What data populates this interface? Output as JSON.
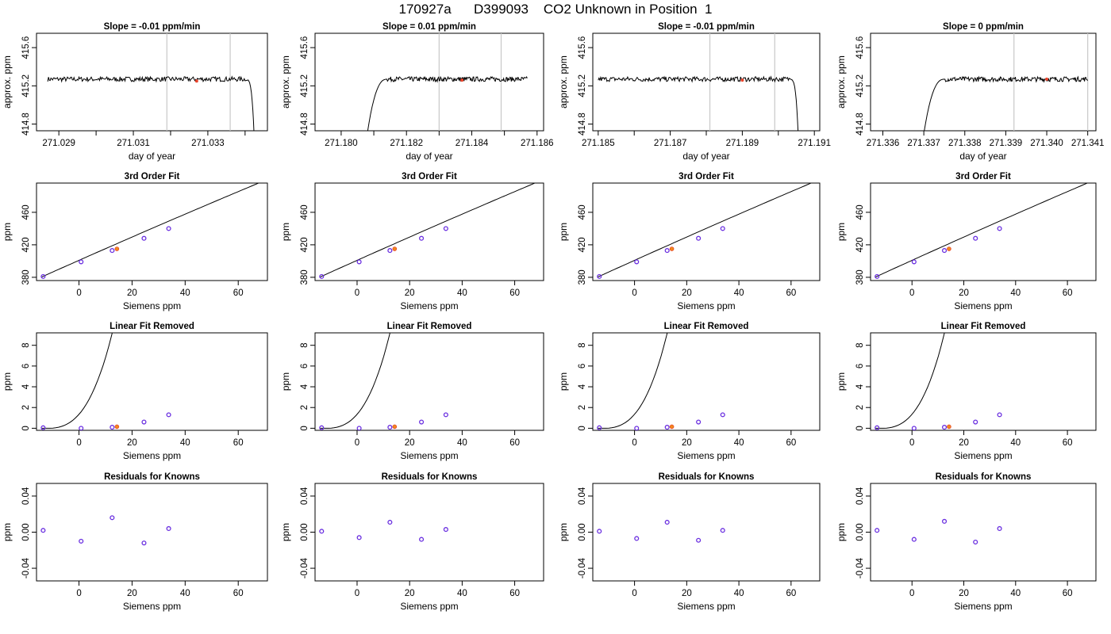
{
  "figure": {
    "title": "170927a      D399093    CO2 Unknown in Position  1"
  },
  "chart_data": [
    {
      "panel": "r1c1",
      "type": "line",
      "title": "Slope =  -0.01  ppm/min",
      "xlabel": "day of year",
      "ylabel": "approx. ppm",
      "xlim": [
        271.0284,
        271.0346
      ],
      "ylim": [
        414.73,
        415.75
      ],
      "xticks": [
        271.029,
        271.03,
        271.031,
        271.032,
        271.033,
        271.034
      ],
      "xticklabels": [
        "271.029",
        "",
        "271.031",
        "",
        "271.033",
        ""
      ],
      "yticks": [
        414.8,
        415.2,
        415.6
      ],
      "yticklabels": [
        "414.8",
        "415.2",
        "415.6"
      ],
      "vlines": [
        271.0319,
        271.0336
      ],
      "trace": {
        "x_start": 271.0287,
        "x_plateau_end": 271.034,
        "x_drop_end": 271.03424,
        "level": 415.27,
        "drop_to": 414.7,
        "rise": false
      },
      "marker": {
        "x": 271.0327,
        "y": 415.25
      }
    },
    {
      "panel": "r2c1",
      "type": "line",
      "title": "Slope =  0.01  ppm/min",
      "xlabel": "day of year",
      "ylabel": "approx. ppm",
      "xlim": [
        271.1792,
        271.1862
      ],
      "ylim": [
        414.73,
        415.75
      ],
      "xticks": [
        271.18,
        271.181,
        271.182,
        271.183,
        271.184,
        271.185,
        271.186
      ],
      "xticklabels": [
        "271.180",
        "",
        "271.182",
        "",
        "271.184",
        "",
        "271.186"
      ],
      "yticks": [
        414.8,
        415.2,
        415.6
      ],
      "yticklabels": [
        "414.8",
        "415.2",
        "415.6"
      ],
      "vlines": [
        271.183,
        271.1849
      ],
      "trace": {
        "x_start": 271.1808,
        "x_rise_end": 271.1814,
        "x_end": 271.1857,
        "level": 415.27,
        "rise": true
      },
      "marker": {
        "x": 271.1837,
        "y": 415.26
      }
    },
    {
      "panel": "r3c1",
      "type": "line",
      "title": "Slope =  -0.01  ppm/min",
      "xlabel": "day of year",
      "ylabel": "approx. ppm",
      "xlim": [
        271.18485,
        271.19115
      ],
      "ylim": [
        414.73,
        415.75
      ],
      "xticks": [
        271.185,
        271.186,
        271.187,
        271.188,
        271.189,
        271.19,
        271.191
      ],
      "xticklabels": [
        "271.185",
        "",
        "271.187",
        "",
        "271.189",
        "",
        "271.191"
      ],
      "yticks": [
        414.8,
        415.2,
        415.6
      ],
      "yticklabels": [
        "414.8",
        "415.2",
        "415.6"
      ],
      "vlines": [
        271.1881,
        271.1899
      ],
      "trace": {
        "x_start": 271.185,
        "x_plateau_end": 271.1903,
        "x_drop_end": 271.19055,
        "level": 415.27,
        "drop_to": 414.7,
        "rise": false
      },
      "marker": {
        "x": 271.189,
        "y": 415.26
      }
    },
    {
      "panel": "r4c1",
      "type": "line",
      "title": "Slope =  0  ppm/min",
      "xlabel": "day of year",
      "ylabel": "approx. ppm",
      "xlim": [
        271.3357,
        271.3412
      ],
      "ylim": [
        414.73,
        415.75
      ],
      "xticks": [
        271.336,
        271.337,
        271.338,
        271.339,
        271.34,
        271.341
      ],
      "xticklabels": [
        "271.336",
        "271.337",
        "271.338",
        "271.339",
        "271.340",
        "271.341"
      ],
      "yticks": [
        414.8,
        415.2,
        415.6
      ],
      "yticklabels": [
        "414.8",
        "415.2",
        "415.6"
      ],
      "vlines": [
        271.3392,
        271.341
      ],
      "trace": {
        "x_start": 271.337,
        "x_rise_end": 271.3375,
        "x_end": 271.341,
        "level": 415.27,
        "rise": true
      },
      "marker": {
        "x": 271.34,
        "y": 415.27
      }
    },
    {
      "panel": "r1c2",
      "type": "scatter+line",
      "title": "3rd Order Fit",
      "xlabel": "Siemens ppm",
      "ylabel": "ppm",
      "xlim": [
        -16,
        71
      ],
      "ylim": [
        376,
        496
      ],
      "xticks": [
        0,
        20,
        40,
        60
      ],
      "yticks": [
        380,
        420,
        460
      ],
      "curve": {
        "x0": -14,
        "y0": 380.5,
        "slope": 1.463,
        "x1": 69
      },
      "knowns": [
        {
          "x": -13.5,
          "y": 381
        },
        {
          "x": 0.8,
          "y": 399
        },
        {
          "x": 12.5,
          "y": 413
        },
        {
          "x": 24.5,
          "y": 428
        },
        {
          "x": 33.8,
          "y": 440
        }
      ],
      "unknown": {
        "x": 14.3,
        "y": 415
      }
    },
    {
      "panel": "r2c2",
      "type": "scatter+line",
      "title": "3rd Order Fit",
      "xlabel": "Siemens ppm",
      "ylabel": "ppm",
      "xlim": [
        -16,
        71
      ],
      "ylim": [
        376,
        496
      ],
      "xticks": [
        0,
        20,
        40,
        60
      ],
      "yticks": [
        380,
        420,
        460
      ],
      "curve": {
        "x0": -14,
        "y0": 380.5,
        "slope": 1.463,
        "x1": 69
      },
      "knowns": [
        {
          "x": -13.5,
          "y": 381
        },
        {
          "x": 0.8,
          "y": 399
        },
        {
          "x": 12.5,
          "y": 413
        },
        {
          "x": 24.5,
          "y": 428
        },
        {
          "x": 33.8,
          "y": 440
        }
      ],
      "unknown": {
        "x": 14.3,
        "y": 415
      }
    },
    {
      "panel": "r3c2",
      "type": "scatter+line",
      "title": "3rd Order Fit",
      "xlabel": "Siemens ppm",
      "ylabel": "ppm",
      "xlim": [
        -16,
        71
      ],
      "ylim": [
        376,
        496
      ],
      "xticks": [
        0,
        20,
        40,
        60
      ],
      "yticks": [
        380,
        420,
        460
      ],
      "curve": {
        "x0": -14,
        "y0": 380.5,
        "slope": 1.463,
        "x1": 69
      },
      "knowns": [
        {
          "x": -13.5,
          "y": 381
        },
        {
          "x": 0.8,
          "y": 399
        },
        {
          "x": 12.5,
          "y": 413
        },
        {
          "x": 24.5,
          "y": 428
        },
        {
          "x": 33.8,
          "y": 440
        }
      ],
      "unknown": {
        "x": 14.3,
        "y": 415
      }
    },
    {
      "panel": "r4c2",
      "type": "scatter+line",
      "title": "3rd Order Fit",
      "xlabel": "Siemens ppm",
      "ylabel": "ppm",
      "xlim": [
        -16,
        71
      ],
      "ylim": [
        376,
        496
      ],
      "xticks": [
        0,
        20,
        40,
        60
      ],
      "yticks": [
        380,
        420,
        460
      ],
      "curve": {
        "x0": -14,
        "y0": 380.5,
        "slope": 1.463,
        "x1": 69
      },
      "knowns": [
        {
          "x": -13.5,
          "y": 381
        },
        {
          "x": 0.8,
          "y": 399
        },
        {
          "x": 12.5,
          "y": 413
        },
        {
          "x": 24.5,
          "y": 428
        },
        {
          "x": 33.8,
          "y": 440
        }
      ],
      "unknown": {
        "x": 14.3,
        "y": 415
      }
    },
    {
      "panel": "r1c3",
      "type": "scatter+line",
      "title": "Linear Fit Removed",
      "xlabel": "Siemens ppm",
      "ylabel": "ppm",
      "xlim": [
        -16,
        71
      ],
      "ylim": [
        -0.2,
        9.2
      ],
      "xticks": [
        0,
        20,
        40,
        60
      ],
      "yticks": [
        0,
        2,
        4,
        6,
        8
      ],
      "curve": {
        "x0": -14,
        "a": 0.000565,
        "p": 2.96,
        "x1": 70
      },
      "knowns": [
        {
          "x": -13.5,
          "y": 0.05
        },
        {
          "x": 0.8,
          "y": 0.0
        },
        {
          "x": 12.5,
          "y": 0.1
        },
        {
          "x": 24.5,
          "y": 0.6
        },
        {
          "x": 33.8,
          "y": 1.3
        }
      ],
      "unknown": {
        "x": 14.3,
        "y": 0.15
      }
    },
    {
      "panel": "r2c3",
      "type": "scatter+line",
      "title": "Linear Fit Removed",
      "xlabel": "Siemens ppm",
      "ylabel": "ppm",
      "xlim": [
        -16,
        71
      ],
      "ylim": [
        -0.2,
        9.2
      ],
      "xticks": [
        0,
        20,
        40,
        60
      ],
      "yticks": [
        0,
        2,
        4,
        6,
        8
      ],
      "curve": {
        "x0": -14,
        "a": 0.000565,
        "p": 2.96,
        "x1": 70
      },
      "knowns": [
        {
          "x": -13.5,
          "y": 0.05
        },
        {
          "x": 0.8,
          "y": 0.0
        },
        {
          "x": 12.5,
          "y": 0.1
        },
        {
          "x": 24.5,
          "y": 0.6
        },
        {
          "x": 33.8,
          "y": 1.3
        }
      ],
      "unknown": {
        "x": 14.3,
        "y": 0.15
      }
    },
    {
      "panel": "r3c3",
      "type": "scatter+line",
      "title": "Linear Fit Removed",
      "xlabel": "Siemens ppm",
      "ylabel": "ppm",
      "xlim": [
        -16,
        71
      ],
      "ylim": [
        -0.2,
        9.2
      ],
      "xticks": [
        0,
        20,
        40,
        60
      ],
      "yticks": [
        0,
        2,
        4,
        6,
        8
      ],
      "curve": {
        "x0": -14,
        "a": 0.000565,
        "p": 2.96,
        "x1": 70
      },
      "knowns": [
        {
          "x": -13.5,
          "y": 0.05
        },
        {
          "x": 0.8,
          "y": 0.0
        },
        {
          "x": 12.5,
          "y": 0.1
        },
        {
          "x": 24.5,
          "y": 0.6
        },
        {
          "x": 33.8,
          "y": 1.3
        }
      ],
      "unknown": {
        "x": 14.3,
        "y": 0.15
      }
    },
    {
      "panel": "r4c3",
      "type": "scatter+line",
      "title": "Linear Fit Removed",
      "xlabel": "Siemens ppm",
      "ylabel": "ppm",
      "xlim": [
        -16,
        71
      ],
      "ylim": [
        -0.2,
        9.2
      ],
      "xticks": [
        0,
        20,
        40,
        60
      ],
      "yticks": [
        0,
        2,
        4,
        6,
        8
      ],
      "curve": {
        "x0": -14,
        "a": 0.000565,
        "p": 2.96,
        "x1": 70
      },
      "knowns": [
        {
          "x": -13.5,
          "y": 0.05
        },
        {
          "x": 0.8,
          "y": 0.0
        },
        {
          "x": 12.5,
          "y": 0.1
        },
        {
          "x": 24.5,
          "y": 0.6
        },
        {
          "x": 33.8,
          "y": 1.3
        }
      ],
      "unknown": {
        "x": 14.3,
        "y": 0.15
      }
    },
    {
      "panel": "r1c4",
      "type": "scatter",
      "title": "Residuals for Knowns",
      "xlabel": "Siemens ppm",
      "ylabel": "ppm",
      "xlim": [
        -16,
        71
      ],
      "ylim": [
        -0.054,
        0.054
      ],
      "xticks": [
        0,
        20,
        40,
        60
      ],
      "yticks": [
        -0.04,
        0.0,
        0.04
      ],
      "yticklabels": [
        "-0.04",
        "0.00",
        "0.04"
      ],
      "knowns": [
        {
          "x": -13.5,
          "y": 0.002
        },
        {
          "x": 0.8,
          "y": -0.01
        },
        {
          "x": 12.5,
          "y": 0.016
        },
        {
          "x": 24.5,
          "y": -0.012
        },
        {
          "x": 33.8,
          "y": 0.004
        }
      ]
    },
    {
      "panel": "r2c4",
      "type": "scatter",
      "title": "Residuals for Knowns",
      "xlabel": "Siemens ppm",
      "ylabel": "ppm",
      "xlim": [
        -16,
        71
      ],
      "ylim": [
        -0.054,
        0.054
      ],
      "xticks": [
        0,
        20,
        40,
        60
      ],
      "yticks": [
        -0.04,
        0.0,
        0.04
      ],
      "yticklabels": [
        "-0.04",
        "0.00",
        "0.04"
      ],
      "knowns": [
        {
          "x": -13.5,
          "y": 0.001
        },
        {
          "x": 0.8,
          "y": -0.006
        },
        {
          "x": 12.5,
          "y": 0.011
        },
        {
          "x": 24.5,
          "y": -0.008
        },
        {
          "x": 33.8,
          "y": 0.003
        }
      ]
    },
    {
      "panel": "r3c4",
      "type": "scatter",
      "title": "Residuals for Knowns",
      "xlabel": "Siemens ppm",
      "ylabel": "ppm",
      "xlim": [
        -16,
        71
      ],
      "ylim": [
        -0.054,
        0.054
      ],
      "xticks": [
        0,
        20,
        40,
        60
      ],
      "yticks": [
        -0.04,
        0.0,
        0.04
      ],
      "yticklabels": [
        "-0.04",
        "0.00",
        "0.04"
      ],
      "knowns": [
        {
          "x": -13.5,
          "y": 0.001
        },
        {
          "x": 0.8,
          "y": -0.007
        },
        {
          "x": 12.5,
          "y": 0.011
        },
        {
          "x": 24.5,
          "y": -0.009
        },
        {
          "x": 33.8,
          "y": 0.002
        }
      ]
    },
    {
      "panel": "r4c4",
      "type": "scatter",
      "title": "Residuals for Knowns",
      "xlabel": "Siemens ppm",
      "ylabel": "ppm",
      "xlim": [
        -16,
        71
      ],
      "ylim": [
        -0.054,
        0.054
      ],
      "xticks": [
        0,
        20,
        40,
        60
      ],
      "yticks": [
        -0.04,
        0.0,
        0.04
      ],
      "yticklabels": [
        "-0.04",
        "0.00",
        "0.04"
      ],
      "knowns": [
        {
          "x": -13.5,
          "y": 0.002
        },
        {
          "x": 0.8,
          "y": -0.008
        },
        {
          "x": 12.5,
          "y": 0.012
        },
        {
          "x": 24.5,
          "y": -0.011
        },
        {
          "x": 33.8,
          "y": 0.004
        }
      ]
    }
  ]
}
